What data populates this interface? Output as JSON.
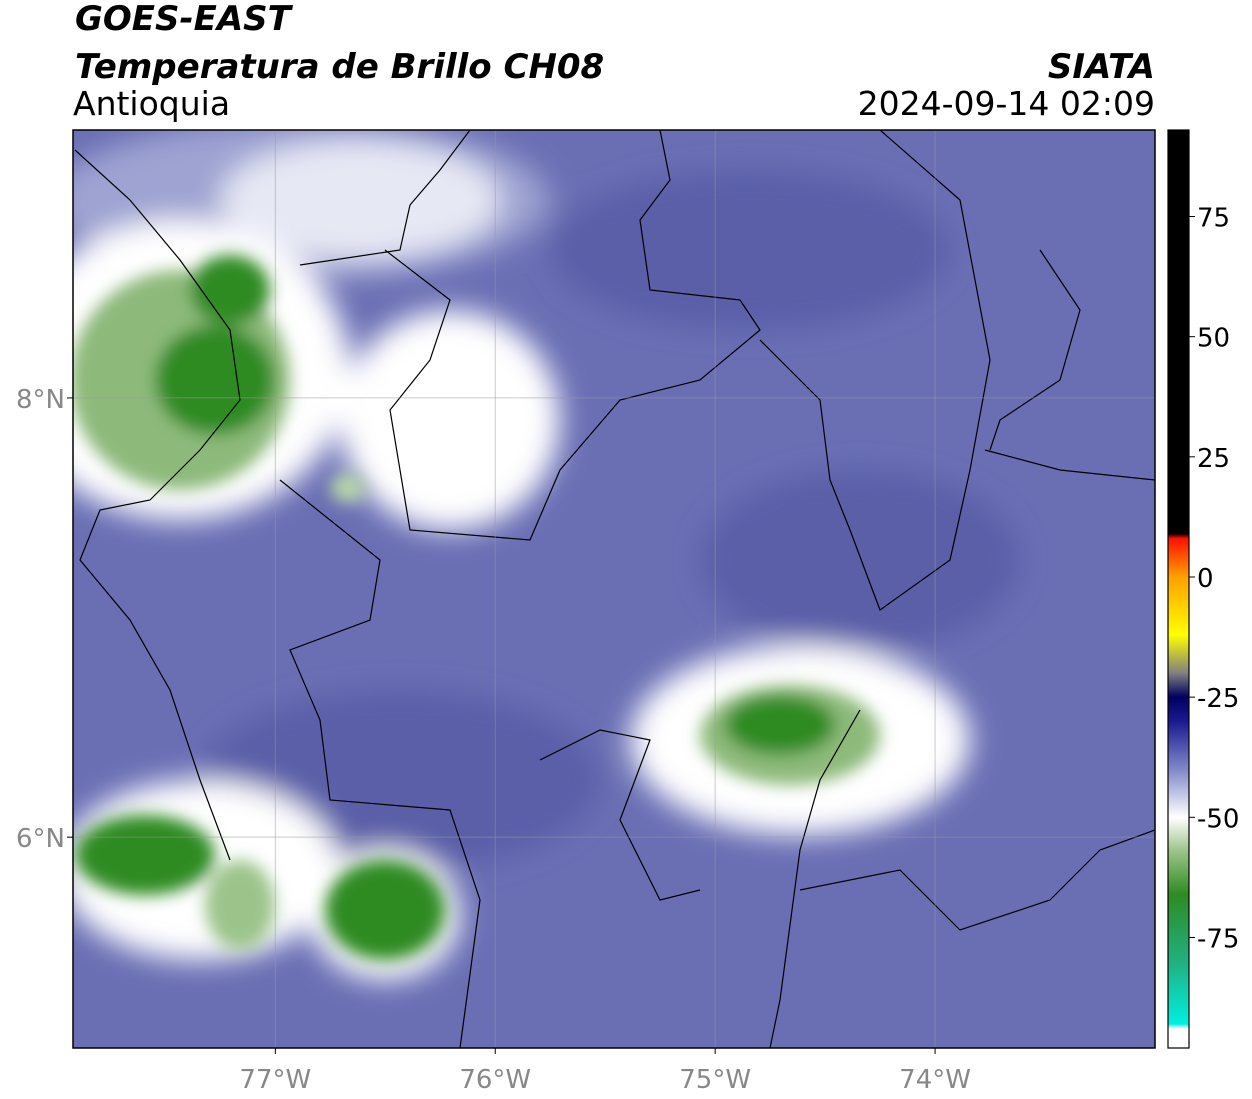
{
  "header": {
    "title": "GOES-EAST",
    "subtitle": "Temperatura de Brillo CH08",
    "region": "Antioquia",
    "source": "SIATA",
    "datetime": "2024-09-14 02:09"
  },
  "map": {
    "xlim": [
      -77.92,
      -73.0
    ],
    "ylim": [
      5.04,
      9.22
    ],
    "xticks": [
      {
        "value": -77,
        "label": "77°W"
      },
      {
        "value": -76,
        "label": "76°W"
      },
      {
        "value": -75,
        "label": "75°W"
      },
      {
        "value": -74,
        "label": "74°W"
      }
    ],
    "yticks": [
      {
        "value": 8,
        "label": "8°N"
      },
      {
        "value": 6,
        "label": "6°N"
      }
    ],
    "grid": true
  },
  "colorbar": {
    "lim": [
      -98,
      93
    ],
    "ticks": [
      75,
      50,
      25,
      0,
      -25,
      -50,
      -75
    ],
    "colormap": [
      {
        "value": -98,
        "color": "#ffffff"
      },
      {
        "value": -94,
        "color": "#ffffff"
      },
      {
        "value": -93,
        "color": "#00f0e0"
      },
      {
        "value": -80,
        "color": "#20b080"
      },
      {
        "value": -66,
        "color": "#2e8b22"
      },
      {
        "value": -57,
        "color": "#9cc48a"
      },
      {
        "value": -50,
        "color": "#ffffff"
      },
      {
        "value": -40,
        "color": "#8088c8"
      },
      {
        "value": -30,
        "color": "#1a1a90"
      },
      {
        "value": -25,
        "color": "#000060"
      },
      {
        "value": -20,
        "color": "#808080"
      },
      {
        "value": -12,
        "color": "#ffff00"
      },
      {
        "value": 0,
        "color": "#ffa000"
      },
      {
        "value": 8,
        "color": "#ff1000"
      },
      {
        "value": 9,
        "color": "#000000"
      },
      {
        "value": 93,
        "color": "#000000"
      }
    ]
  }
}
